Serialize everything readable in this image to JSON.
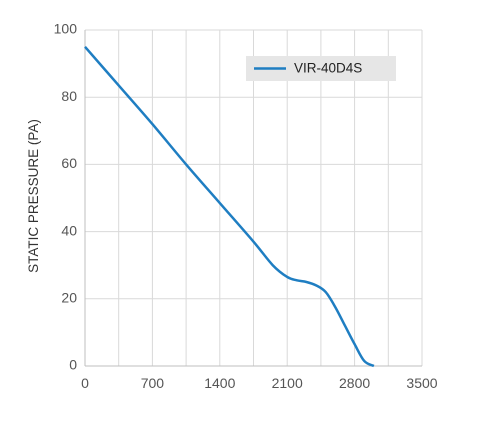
{
  "chart_data": {
    "type": "line",
    "title": "",
    "xlabel": "",
    "ylabel": "STATIC PRESSURE (PA)",
    "xlim": [
      0,
      3500
    ],
    "ylim": [
      0,
      100
    ],
    "x_ticks": [
      "0",
      "700",
      "1400",
      "2100",
      "2800",
      "3500"
    ],
    "y_ticks": [
      "0",
      "20",
      "40",
      "60",
      "80",
      "100"
    ],
    "x_tick_values": [
      0,
      700,
      1400,
      2100,
      2800,
      3500
    ],
    "y_tick_values": [
      0,
      20,
      40,
      60,
      80,
      100
    ],
    "x_minor_step": 350,
    "grid": true,
    "legend_position": "top-right",
    "series": [
      {
        "name": "VIR-40D4S",
        "color": "#1f7ec2",
        "x": [
          0,
          350,
          700,
          1050,
          1400,
          1750,
          1950,
          2100,
          2200,
          2300,
          2400,
          2500,
          2600,
          2700,
          2800,
          2900,
          3000
        ],
        "y": [
          95,
          83.5,
          72,
          60,
          48.5,
          37,
          30,
          26.5,
          25.5,
          25,
          24,
          22,
          17.5,
          12,
          6.5,
          1.5,
          0
        ]
      }
    ]
  }
}
